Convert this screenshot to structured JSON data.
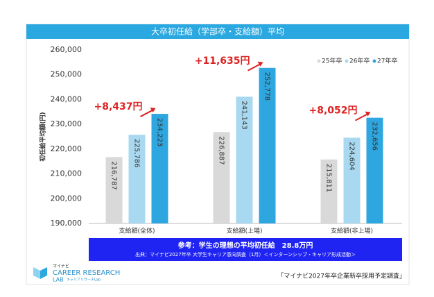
{
  "chart_data": {
    "type": "bar",
    "title": "大卒初任給（学部卒・支給額）平均",
    "y_label": "初任給平均額(円)",
    "categories": [
      "支給額(全体)",
      "支給額(上場)",
      "支給額(非上場)"
    ],
    "series": [
      {
        "name": "25年卒",
        "color": "#d9d9d9",
        "values": [
          216787,
          226887,
          215811
        ],
        "value_labels": [
          "216,787",
          "226,887",
          "215,811"
        ]
      },
      {
        "name": "26年卒",
        "color": "#a9d9f0",
        "values": [
          225786,
          241143,
          224604
        ],
        "value_labels": [
          "225,786",
          "241,143",
          "224,604"
        ]
      },
      {
        "name": "27年卒",
        "color": "#2ea6df",
        "values": [
          234223,
          252778,
          232656
        ],
        "value_labels": [
          "234,223",
          "252,778",
          "232,656"
        ]
      }
    ],
    "annotations": [
      "+8,437円",
      "+11,635円",
      "+8,052円"
    ],
    "ylim": [
      190000,
      260000
    ],
    "yticks": [
      {
        "value": 190000,
        "label": "190,000"
      },
      {
        "value": 200000,
        "label": "200,000"
      },
      {
        "value": 210000,
        "label": "210,000"
      },
      {
        "value": 220000,
        "label": "220,000"
      },
      {
        "value": 230000,
        "label": "230,000"
      },
      {
        "value": 240000,
        "label": "240,000"
      },
      {
        "value": 250000,
        "label": "250,000"
      },
      {
        "value": 260000,
        "label": "260,000"
      }
    ],
    "grid": false,
    "legend": "upper-right"
  },
  "note": {
    "line1": "参考：学生の理想の平均初任給　28.8万円",
    "line2": "出典：マイナビ2027年卒 大学生キャリア意向調査（1月）＜インターンシップ・キャリア形成活動＞"
  },
  "logo": {
    "brand": "マイナビ",
    "name": "CAREER RESEARCH",
    "sub": "LAB",
    "kana": "キャリアリサーチLab"
  },
  "source": "「マイナビ2027年卒企業新卒採用予定調査」"
}
